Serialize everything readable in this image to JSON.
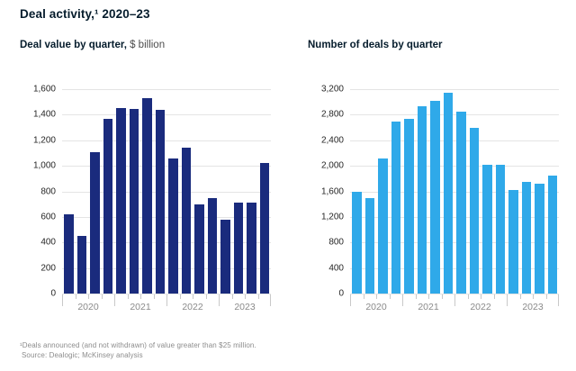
{
  "title": "Deal activity,¹ 2020–23",
  "footnote": {
    "line1": "¹Deals announced (and not withdrawn) of value greater than $25 million.",
    "line2": "Source: Dealogic; McKinsey analysis"
  },
  "colors": {
    "navy_bar": "#1A2B7D",
    "cyan_bar": "#2FA9E9",
    "gridline": "#E4E4E4",
    "tick": "#C9C9C9",
    "year_label": "#8A8A8A"
  },
  "chart_data": [
    {
      "type": "bar",
      "title": "Deal value by quarter",
      "subtitle_bold": "Deal value by quarter,",
      "subtitle_unit": "$ billion",
      "bar_color": "#1A2B7D",
      "ylim": [
        0,
        1600
      ],
      "ytick_step": 200,
      "ytick_labels": [
        "0",
        "200",
        "400",
        "600",
        "800",
        "1,000",
        "1,200",
        "1,400",
        "1,600"
      ],
      "x_year_labels": [
        "2020",
        "2021",
        "2022",
        "2023"
      ],
      "bars_per_year": 4,
      "categories": [
        "2020 Q1",
        "2020 Q2",
        "2020 Q3",
        "2020 Q4",
        "2021 Q1",
        "2021 Q2",
        "2021 Q3",
        "2021 Q4",
        "2022 Q1",
        "2022 Q2",
        "2022 Q3",
        "2022 Q4",
        "2023 Q1",
        "2023 Q2",
        "2023 Q3",
        "2023 Q4"
      ],
      "values": [
        620,
        450,
        1105,
        1365,
        1450,
        1445,
        1530,
        1440,
        1060,
        1140,
        695,
        745,
        580,
        715,
        715,
        1020
      ],
      "grid": true,
      "legend": "none"
    },
    {
      "type": "bar",
      "title": "Number of deals by quarter",
      "subtitle_bold": "Number of deals by quarter",
      "subtitle_unit": "",
      "bar_color": "#2FA9E9",
      "ylim": [
        0,
        3200
      ],
      "ytick_step": 400,
      "ytick_labels": [
        "0",
        "400",
        "800",
        "1,200",
        "1,600",
        "2,000",
        "2,400",
        "2,800",
        "3,200"
      ],
      "x_year_labels": [
        "2020",
        "2021",
        "2022",
        "2023"
      ],
      "bars_per_year": 4,
      "categories": [
        "2020 Q1",
        "2020 Q2",
        "2020 Q3",
        "2020 Q4",
        "2021 Q1",
        "2021 Q2",
        "2021 Q3",
        "2021 Q4",
        "2022 Q1",
        "2022 Q2",
        "2022 Q3",
        "2022 Q4",
        "2023 Q1",
        "2023 Q2",
        "2023 Q3",
        "2023 Q4"
      ],
      "values": [
        1590,
        1490,
        2120,
        2690,
        2740,
        2930,
        3010,
        3140,
        2850,
        2600,
        2020,
        2020,
        1625,
        1750,
        1720,
        1845
      ],
      "grid": true,
      "legend": "none"
    }
  ]
}
